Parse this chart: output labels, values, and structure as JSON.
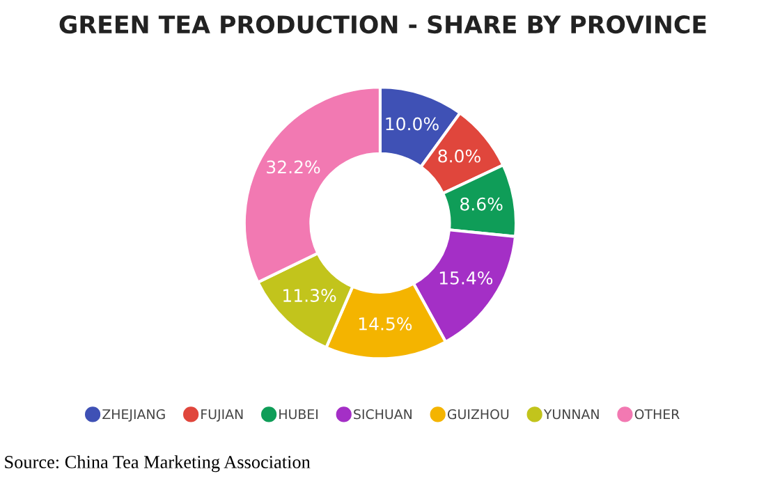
{
  "chart_data": {
    "type": "donut",
    "title": "GREEN TEA PRODUCTION - SHARE BY PROVINCE",
    "categories": [
      "ZHEJIANG",
      "FUJIAN",
      "HUBEI",
      "SICHUAN",
      "GUIZHOU",
      "YUNNAN",
      "OTHER"
    ],
    "values": [
      10.0,
      8.0,
      8.6,
      15.4,
      14.5,
      11.3,
      32.2
    ],
    "value_labels": [
      "10.0%",
      "8.0%",
      "8.6%",
      "15.4%",
      "14.5%",
      "11.3%",
      "32.2%"
    ],
    "colors": [
      "#3f51b5",
      "#e0463c",
      "#0f9d58",
      "#a42fc6",
      "#f4b400",
      "#c2c41c",
      "#f279b2"
    ],
    "legend": "bottom",
    "annotations": [
      "Source: China Tea Marketing Association"
    ]
  }
}
